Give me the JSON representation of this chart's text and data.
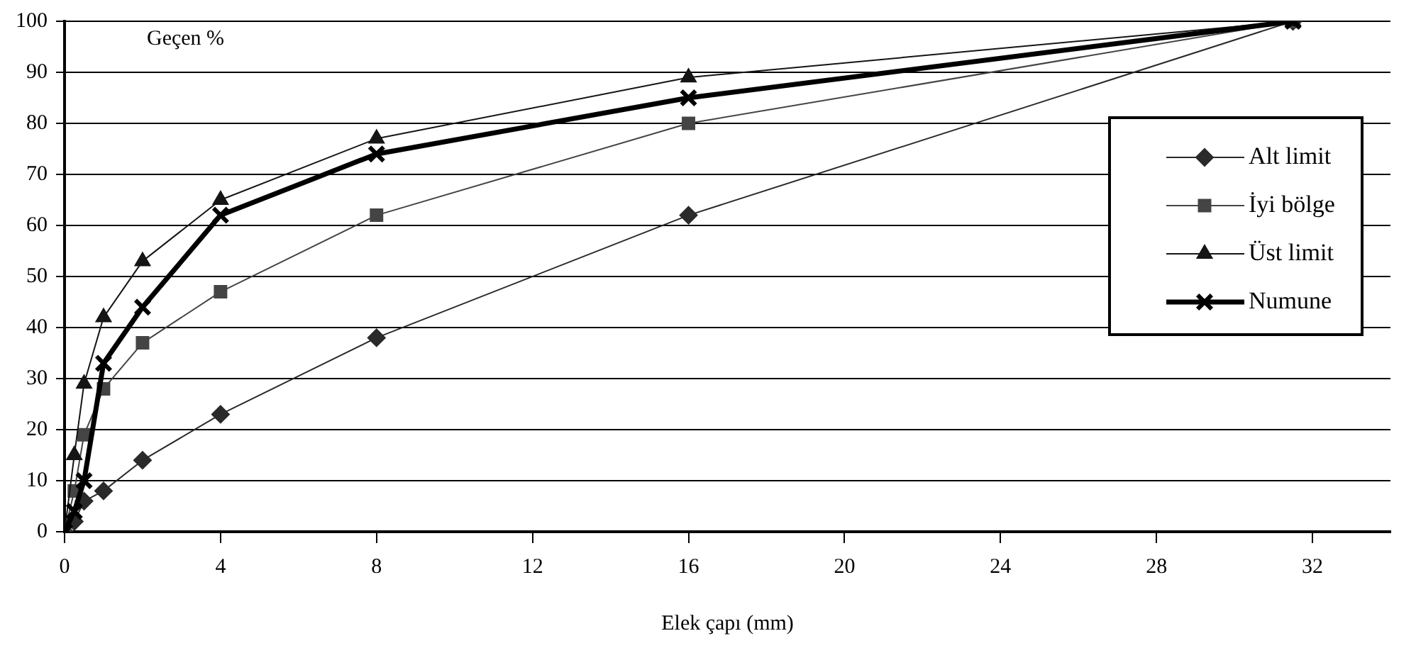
{
  "chart_data": {
    "type": "line",
    "xlabel": "Elek çapı (mm)",
    "ylabel": "Geçen %",
    "xlim": [
      0,
      34
    ],
    "xticks": [
      0,
      4,
      8,
      12,
      16,
      20,
      24,
      28,
      32
    ],
    "ylim": [
      0,
      100
    ],
    "yticks": [
      0,
      10,
      20,
      30,
      40,
      50,
      60,
      70,
      80,
      90,
      100
    ],
    "grid": "y",
    "legend": "right",
    "line_style": "solid",
    "x": [
      0,
      0.25,
      0.5,
      1,
      2,
      4,
      8,
      16,
      31.5
    ],
    "series": [
      {
        "name": "Alt limit",
        "color": "#2a2a2a",
        "marker": "diamond",
        "values": [
          0,
          2,
          6,
          8,
          14,
          23,
          38,
          62,
          100
        ]
      },
      {
        "name": "İyi bölge",
        "color": "#444444",
        "marker": "square",
        "values": [
          0,
          8,
          19,
          28,
          37,
          47,
          62,
          80,
          100
        ]
      },
      {
        "name": "Üst limit",
        "color": "#151515",
        "marker": "triangle",
        "values": [
          0,
          15,
          29,
          42,
          53,
          65,
          77,
          89,
          100
        ]
      },
      {
        "name": "Numune",
        "color": "#000000",
        "marker": "cross",
        "values": [
          0,
          4,
          10,
          33,
          44,
          62,
          74,
          85,
          100
        ]
      }
    ]
  }
}
